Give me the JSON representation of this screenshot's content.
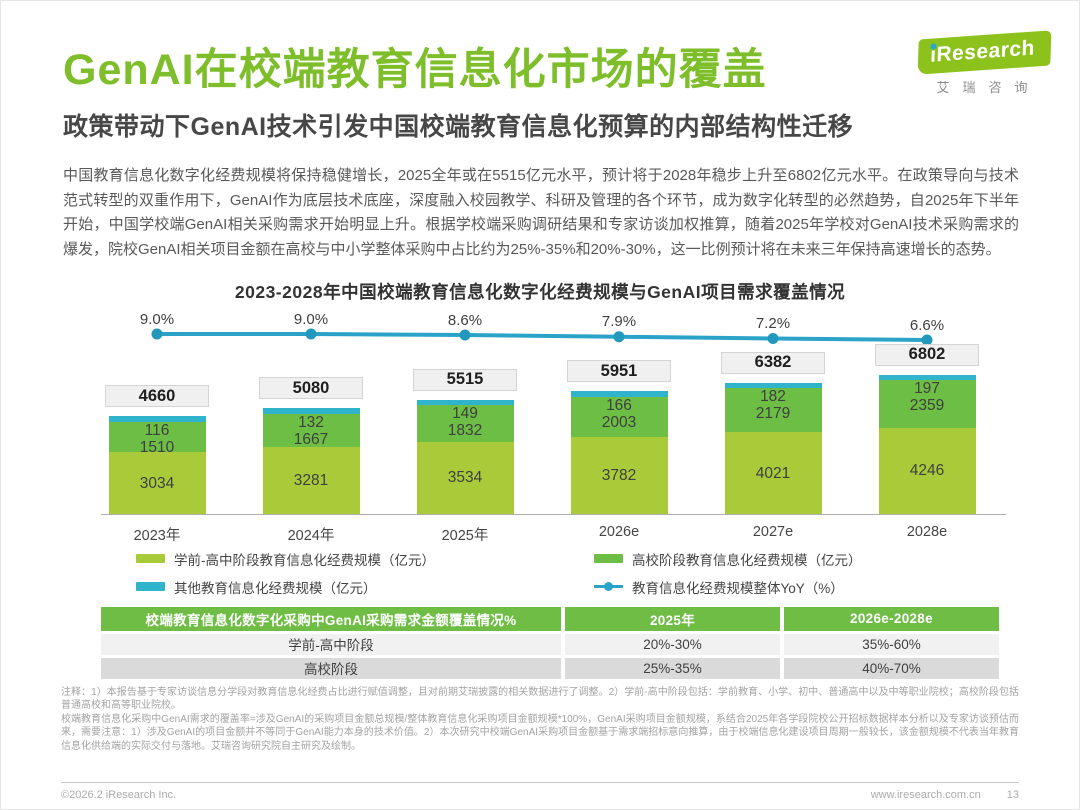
{
  "page": {
    "title": "GenAI在校端教育信息化市场的覆盖",
    "subtitle": "政策带动下GenAI技术引发中国校端教育信息化预算的内部结构性迁移",
    "body_paragraph": "中国教育信息化数字化经费规模将保持稳健增长，2025全年或在5515亿元水平，预计将于2028年稳步上升至6802亿元水平。在政策导向与技术范式转型的双重作用下，GenAI作为底层技术底座，深度融入校园教学、科研及管理的各个环节，成为数字化转型的必然趋势，自2025年下半年开始，中国学校端GenAI相关采购需求开始明显上升。根据学校端采购调研结果和专家访谈加权推算，随着2025年学校对GenAI技术采购需求的爆发，院校GenAI相关项目金额在高校与中小学整体采购中占比约为25%-35%和20%-30%，这一比例预计将在未来三年保持高速增长的态势。"
  },
  "logo": {
    "brand_i": "i",
    "brand": "Research",
    "subtext": "艾瑞咨询"
  },
  "chart_data": {
    "type": "bar",
    "title": "2023-2028年中国校端教育信息化数字化经费规模与GenAI项目需求覆盖情况",
    "categories": [
      "2023年",
      "2024年",
      "2025年",
      "2026e",
      "2027e",
      "2028e"
    ],
    "series": [
      {
        "name": "学前-高中阶段教育信息化经费规模（亿元）",
        "color": "#a9cb3a",
        "values": [
          3034,
          3281,
          3534,
          3782,
          4021,
          4246
        ]
      },
      {
        "name": "高校阶段教育信息化经费规模（亿元）",
        "color": "#6cbe45",
        "values": [
          1510,
          1667,
          1832,
          2003,
          2179,
          2359
        ]
      },
      {
        "name": "其他教育信息化经费规模（亿元）",
        "color": "#2fb4cb",
        "values": [
          116,
          132,
          149,
          166,
          182,
          197
        ]
      }
    ],
    "totals": [
      4660,
      5080,
      5515,
      5951,
      6382,
      6802
    ],
    "line_series": {
      "name": "教育信息化经费规模整体YoY（%）",
      "color": "#2ba3c9",
      "dot_color": "#2398bd",
      "values": [
        9.0,
        9.0,
        8.6,
        7.9,
        7.2,
        6.6
      ],
      "labels": [
        "9.0%",
        "9.0%",
        "8.6%",
        "7.9%",
        "7.2%",
        "6.6%"
      ]
    },
    "stacking": "bottom-to-top: 学前-高中阶段, 高校阶段, 其他",
    "unit": "亿元",
    "legend_position": "below"
  },
  "table": {
    "headers": [
      "校端教育信息化数字化采购中GenAI采购需求金额覆盖情况%",
      "2025年",
      "2026e-2028e"
    ],
    "rows": [
      [
        "学前-高中阶段",
        "20%-30%",
        "35%-60%"
      ],
      [
        "高校阶段",
        "25%-35%",
        "40%-70%"
      ]
    ]
  },
  "notes": {
    "block1": "注释：1）本报告基于专家访谈信息分学段对教育信息化经费占比进行赋值调整，且对前期艾瑞披露的相关数据进行了调整。2）学前-高中阶段包括：学前教育、小学、初中、普通高中以及中等职业院校；高校阶段包括普通高校和高等职业院校。",
    "block2": "校端教育信息化采购中GenAI需求的覆盖率=涉及GenAI的采购项目金额总规模/整体教育信息化采购项目金额规模*100%，GenAI采购项目金额规模，系结合2025年各学段院校公开招标数据样本分析以及专家访谈预估而来，需要注意：1）涉及GenAI的项目金额并不等同于GenAI能力本身的技术价值。2）本次研究中校端GenAI采购项目金额基于需求端招标意向推算，由于校端信息化建设项目周期一般较长，该金额规模不代表当年教育信息化供给端的实际交付与落地。艾瑞咨询研究院自主研究及绘制。"
  },
  "footer": {
    "copyright": "©2026.2 iResearch Inc.",
    "website": "www.iresearch.com.cn",
    "page_number": "13"
  }
}
